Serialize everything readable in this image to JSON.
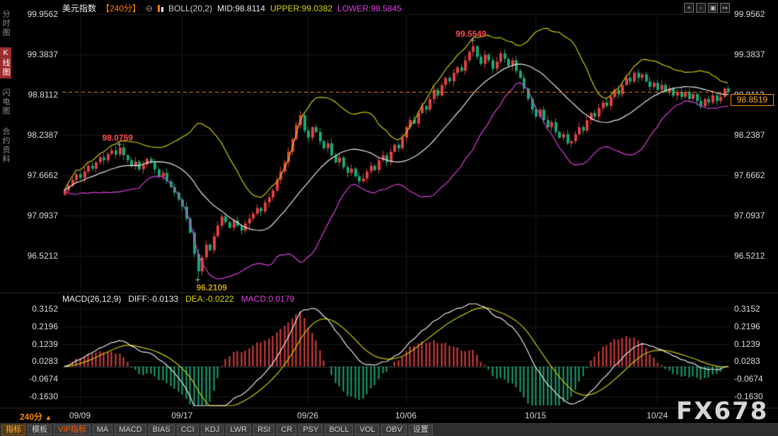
{
  "colors": {
    "up": "#e34040",
    "down": "#16a878",
    "boll_upper": "#cfcf00",
    "boll_mid": "#ececec",
    "boll_lower": "#e23fe2",
    "diff_line": "#ececec",
    "dea_line": "#cfcf00",
    "price_line": "#ff8a00",
    "annotation_red": "#ff4d4d",
    "annotation_yellow": "#c9a400"
  },
  "header": {
    "symbol": "美元指数",
    "period_tag": "【240分】",
    "collapse_glyph": "⊖",
    "boll_label": "BOLL(20,2)",
    "mid_label": "MID:98.8114",
    "upper_label": "UPPER:99.0382",
    "lower_label": "LOWER:98.5845",
    "window_buttons": [
      {
        "name": "crosshair-button",
        "glyph": "+"
      },
      {
        "name": "float-window-button",
        "glyph": "▫"
      },
      {
        "name": "maximize-button",
        "glyph": "▣"
      },
      {
        "name": "collapse-right-button",
        "glyph": "↦"
      }
    ]
  },
  "sidebar": {
    "items": [
      {
        "label": "分时图",
        "name": "tab-time-share-chart",
        "active": false
      },
      {
        "label": "K线图",
        "name": "tab-kline-chart",
        "active": true
      },
      {
        "label": "闪电图",
        "name": "tab-flash-chart",
        "active": false
      },
      {
        "label": "合约资料",
        "name": "tab-contract-info",
        "active": false
      }
    ]
  },
  "main_chart": {
    "y_labels": [
      "99.9562",
      "99.3837",
      "98.8112",
      "98.2387",
      "97.6662",
      "97.0937",
      "96.5212"
    ],
    "current_price": "98.8519",
    "annotations": [
      {
        "text": "98.0759",
        "bar": 14,
        "price": 98.0759,
        "placement": "above",
        "color": "#ff4d4d"
      },
      {
        "text": "96.2109",
        "bar": 34,
        "price": 96.2109,
        "placement": "below",
        "color": "#c9a400"
      },
      {
        "text": "99.5549",
        "bar": 104,
        "price": 99.5549,
        "placement": "above",
        "color": "#ff4d4d"
      }
    ]
  },
  "macd_panel": {
    "label": "MACD(26,12,9)",
    "diff_label": "DIFF:-0.0133",
    "dea_label": "DEA:-0.0222",
    "macd_label": "MACD:0.0179",
    "y_labels": [
      "0.3152",
      "0.2196",
      "0.1239",
      "0.0283",
      "-0.0674",
      "-0.1630"
    ],
    "y_values": [
      0.3152,
      0.2196,
      0.1239,
      0.0283,
      -0.0674,
      -0.163
    ]
  },
  "x_axis": {
    "period": "240分",
    "arrow": "▲",
    "dates": [
      {
        "label": "09/09",
        "bar": 4
      },
      {
        "label": "09/17",
        "bar": 30
      },
      {
        "label": "09/26",
        "bar": 62
      },
      {
        "label": "10/06",
        "bar": 87
      },
      {
        "label": "10/15",
        "bar": 120
      },
      {
        "label": "10/24",
        "bar": 151
      }
    ]
  },
  "watermark": "FX678",
  "toolbar": {
    "items": [
      {
        "label": "指标",
        "name": "btn-indicator",
        "style": "active"
      },
      {
        "label": "模板",
        "name": "btn-template",
        "style": "plain"
      },
      {
        "label": "VIP指标",
        "name": "btn-vip-indicator",
        "style": "vip"
      },
      {
        "label": "MA",
        "name": "btn-ma",
        "style": "plain"
      },
      {
        "label": "MACD",
        "name": "btn-macd",
        "style": "plain"
      },
      {
        "label": "BIAS",
        "name": "btn-bias",
        "style": "plain"
      },
      {
        "label": "CCI",
        "name": "btn-cci",
        "style": "plain"
      },
      {
        "label": "KDJ",
        "name": "btn-kdj",
        "style": "plain"
      },
      {
        "label": "LWR",
        "name": "btn-lwr",
        "style": "plain"
      },
      {
        "label": "RSI",
        "name": "btn-rsi",
        "style": "plain"
      },
      {
        "label": "CR",
        "name": "btn-cr",
        "style": "plain"
      },
      {
        "label": "PSY",
        "name": "btn-psy",
        "style": "plain"
      },
      {
        "label": "BOLL",
        "name": "btn-boll",
        "style": "plain"
      },
      {
        "label": "VOL",
        "name": "btn-vol",
        "style": "plain"
      },
      {
        "label": "OBV",
        "name": "btn-obv",
        "style": "plain"
      },
      {
        "label": "设置",
        "name": "btn-settings",
        "style": "plain"
      }
    ]
  },
  "chart_data": {
    "type": "candlestick",
    "symbol": "美元指数",
    "period": "240分",
    "y_axis": [
      99.9562,
      99.3837,
      98.8112,
      98.2387,
      97.6662,
      97.0937,
      96.5212
    ],
    "x_ticks": [
      "09/09",
      "09/17",
      "09/26",
      "10/06",
      "10/15",
      "10/24"
    ],
    "last_price": 98.8519,
    "closes": [
      97.45,
      97.52,
      97.6,
      97.68,
      97.63,
      97.72,
      97.8,
      97.76,
      97.85,
      97.92,
      97.88,
      97.97,
      98.02,
      97.96,
      98.06,
      97.95,
      97.88,
      97.8,
      97.86,
      97.75,
      97.82,
      97.9,
      97.85,
      97.75,
      97.65,
      97.7,
      97.58,
      97.5,
      97.42,
      97.32,
      97.22,
      97.05,
      96.85,
      96.55,
      96.3,
      96.5,
      96.68,
      96.6,
      96.8,
      96.95,
      97.08,
      97.0,
      96.92,
      97.02,
      96.95,
      96.88,
      96.98,
      97.05,
      97.12,
      97.2,
      97.15,
      97.28,
      97.35,
      97.45,
      97.6,
      97.72,
      97.85,
      98.0,
      98.18,
      98.38,
      98.52,
      98.3,
      98.2,
      98.35,
      98.28,
      98.15,
      98.05,
      98.12,
      97.95,
      97.85,
      97.92,
      97.78,
      97.7,
      97.76,
      97.65,
      97.58,
      97.62,
      97.72,
      97.8,
      97.74,
      97.88,
      97.95,
      97.85,
      98.0,
      98.1,
      98.05,
      98.2,
      98.35,
      98.45,
      98.4,
      98.55,
      98.65,
      98.6,
      98.75,
      98.88,
      98.8,
      98.95,
      99.05,
      99.0,
      99.12,
      99.2,
      99.15,
      99.3,
      99.42,
      99.5,
      99.35,
      99.25,
      99.38,
      99.3,
      99.18,
      99.28,
      99.4,
      99.32,
      99.22,
      99.3,
      99.15,
      99.05,
      98.9,
      98.75,
      98.6,
      98.5,
      98.6,
      98.45,
      98.35,
      98.42,
      98.28,
      98.2,
      98.25,
      98.12,
      98.15,
      98.25,
      98.35,
      98.3,
      98.45,
      98.55,
      98.5,
      98.62,
      98.7,
      98.65,
      98.78,
      98.88,
      98.82,
      98.95,
      99.05,
      99.0,
      99.12,
      99.05,
      99.1,
      99.0,
      98.92,
      98.98,
      98.88,
      98.95,
      98.85,
      98.9,
      98.8,
      98.85,
      98.78,
      98.85,
      98.75,
      98.82,
      98.72,
      98.65,
      98.75,
      98.7,
      98.8,
      98.72,
      98.78,
      98.9,
      98.85
    ],
    "key_points": [
      {
        "index": 14,
        "high": 98.0759
      },
      {
        "index": 34,
        "low": 96.2109
      },
      {
        "index": 104,
        "high": 99.5549
      }
    ],
    "overlay": {
      "name": "BOLL",
      "period": 20,
      "mult": 2,
      "mid": 98.8114,
      "upper": 99.0382,
      "lower": 98.5845
    },
    "sub_indicator": {
      "name": "MACD",
      "fast": 26,
      "slow": 12,
      "signal": 9,
      "diff": -0.0133,
      "dea": -0.0222,
      "macd": 0.0179
    }
  }
}
